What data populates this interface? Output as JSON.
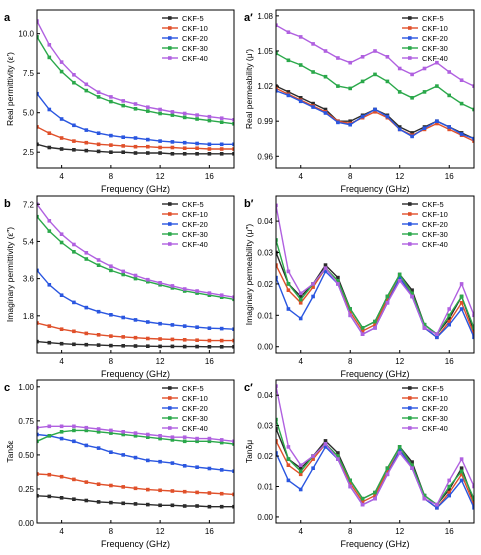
{
  "figure": {
    "legend_labels": [
      "CKF-5",
      "CKF-10",
      "CKF-20",
      "CKF-30",
      "CKF-40"
    ],
    "series_colors": [
      "#2b2b2b",
      "#e0502a",
      "#2a56e0",
      "#2aa84a",
      "#b060e0"
    ]
  },
  "chart_data": [
    {
      "panel": "a",
      "type": "line",
      "marker": "square",
      "xlabel": "Frequency (GHz)",
      "ylabel": "Real permittivity (ε′)",
      "xlim": [
        2,
        18
      ],
      "ylim": [
        1.5,
        11.5
      ],
      "xticks": [
        4,
        8,
        12,
        16
      ],
      "yticks": [
        2.5,
        5.0,
        7.5,
        10.0
      ],
      "xtick_labels": [
        "4",
        "8",
        "12",
        "16"
      ],
      "ytick_labels": [
        "2.5",
        "5.0",
        "7.5",
        "10.0"
      ],
      "legend_position": "top-right",
      "x": [
        2,
        3,
        4,
        5,
        6,
        7,
        8,
        9,
        10,
        11,
        12,
        13,
        14,
        15,
        16,
        17,
        18
      ],
      "series": [
        {
          "name": "CKF-5",
          "values": [
            3.0,
            2.8,
            2.7,
            2.65,
            2.6,
            2.55,
            2.5,
            2.5,
            2.45,
            2.45,
            2.45,
            2.4,
            2.4,
            2.4,
            2.4,
            2.4,
            2.4
          ]
        },
        {
          "name": "CKF-10",
          "values": [
            4.1,
            3.7,
            3.4,
            3.2,
            3.1,
            3.0,
            2.95,
            2.9,
            2.85,
            2.85,
            2.8,
            2.8,
            2.75,
            2.75,
            2.7,
            2.7,
            2.7
          ]
        },
        {
          "name": "CKF-20",
          "values": [
            6.2,
            5.2,
            4.6,
            4.2,
            3.9,
            3.7,
            3.55,
            3.45,
            3.4,
            3.3,
            3.2,
            3.15,
            3.1,
            3.05,
            3.0,
            3.0,
            3.0
          ]
        },
        {
          "name": "CKF-30",
          "values": [
            9.8,
            8.5,
            7.6,
            6.9,
            6.4,
            6.0,
            5.7,
            5.45,
            5.25,
            5.1,
            4.95,
            4.85,
            4.7,
            4.6,
            4.5,
            4.4,
            4.3
          ]
        },
        {
          "name": "CKF-40",
          "values": [
            10.8,
            9.3,
            8.2,
            7.4,
            6.8,
            6.3,
            6.0,
            5.75,
            5.55,
            5.35,
            5.2,
            5.05,
            4.95,
            4.85,
            4.75,
            4.65,
            4.55
          ]
        }
      ]
    },
    {
      "panel": "a′",
      "type": "line",
      "marker": "square",
      "xlabel": "Frequency (GHz)",
      "ylabel": "Real permeability (μ′)",
      "xlim": [
        2,
        18
      ],
      "ylim": [
        0.95,
        1.085
      ],
      "xticks": [
        4,
        8,
        12,
        16
      ],
      "yticks": [
        0.96,
        0.99,
        1.02,
        1.05,
        1.08
      ],
      "xtick_labels": [
        "4",
        "8",
        "12",
        "16"
      ],
      "ytick_labels": [
        "0.96",
        "0.99",
        "1.02",
        "1.05",
        "1.08"
      ],
      "legend_position": "top-right",
      "x": [
        2,
        3,
        4,
        5,
        6,
        7,
        8,
        9,
        10,
        11,
        12,
        13,
        14,
        15,
        16,
        17,
        18
      ],
      "series": [
        {
          "name": "CKF-5",
          "values": [
            1.02,
            1.015,
            1.01,
            1.005,
            1.0,
            0.99,
            0.99,
            0.995,
            1.0,
            0.995,
            0.985,
            0.98,
            0.985,
            0.99,
            0.985,
            0.98,
            0.975
          ]
        },
        {
          "name": "CKF-10",
          "values": [
            1.018,
            1.013,
            1.008,
            1.003,
            0.998,
            0.99,
            0.988,
            0.993,
            0.998,
            0.993,
            0.983,
            0.978,
            0.983,
            0.988,
            0.983,
            0.978,
            0.973
          ]
        },
        {
          "name": "CKF-20",
          "values": [
            1.016,
            1.012,
            1.007,
            1.002,
            0.997,
            0.989,
            0.987,
            0.994,
            1.0,
            0.994,
            0.983,
            0.977,
            0.984,
            0.99,
            0.985,
            0.979,
            0.975
          ]
        },
        {
          "name": "CKF-30",
          "values": [
            1.048,
            1.042,
            1.038,
            1.032,
            1.028,
            1.02,
            1.018,
            1.024,
            1.03,
            1.024,
            1.015,
            1.01,
            1.015,
            1.02,
            1.012,
            1.005,
            1.0
          ]
        },
        {
          "name": "CKF-40",
          "values": [
            1.072,
            1.066,
            1.062,
            1.056,
            1.05,
            1.044,
            1.04,
            1.045,
            1.05,
            1.045,
            1.035,
            1.03,
            1.035,
            1.04,
            1.032,
            1.025,
            1.02
          ]
        }
      ]
    },
    {
      "panel": "b",
      "type": "line",
      "marker": "square",
      "xlabel": "Frequency (GHz)",
      "ylabel": "Imaginary permittivity (ε″)",
      "xlim": [
        2,
        18
      ],
      "ylim": [
        0,
        7.6
      ],
      "xticks": [
        4,
        8,
        12,
        16
      ],
      "yticks": [
        1.8,
        3.6,
        5.4,
        7.2
      ],
      "xtick_labels": [
        "4",
        "8",
        "12",
        "16"
      ],
      "ytick_labels": [
        "1.8",
        "3.6",
        "5.4",
        "7.2"
      ],
      "legend_position": "top-right",
      "x": [
        2,
        3,
        4,
        5,
        6,
        7,
        8,
        9,
        10,
        11,
        12,
        13,
        14,
        15,
        16,
        17,
        18
      ],
      "series": [
        {
          "name": "CKF-5",
          "values": [
            0.55,
            0.5,
            0.45,
            0.42,
            0.4,
            0.38,
            0.36,
            0.35,
            0.34,
            0.33,
            0.32,
            0.32,
            0.31,
            0.31,
            0.3,
            0.3,
            0.3
          ]
        },
        {
          "name": "CKF-10",
          "values": [
            1.45,
            1.3,
            1.15,
            1.05,
            0.95,
            0.88,
            0.82,
            0.78,
            0.74,
            0.7,
            0.68,
            0.66,
            0.64,
            0.62,
            0.6,
            0.6,
            0.6
          ]
        },
        {
          "name": "CKF-20",
          "values": [
            4.0,
            3.3,
            2.8,
            2.45,
            2.2,
            2.0,
            1.85,
            1.72,
            1.6,
            1.5,
            1.42,
            1.36,
            1.3,
            1.25,
            1.2,
            1.18,
            1.15
          ]
        },
        {
          "name": "CKF-30",
          "values": [
            6.6,
            5.9,
            5.35,
            4.9,
            4.55,
            4.25,
            4.0,
            3.8,
            3.6,
            3.45,
            3.3,
            3.15,
            3.0,
            2.9,
            2.8,
            2.7,
            2.6
          ]
        },
        {
          "name": "CKF-40",
          "values": [
            7.2,
            6.4,
            5.75,
            5.25,
            4.85,
            4.5,
            4.2,
            3.95,
            3.75,
            3.55,
            3.4,
            3.25,
            3.1,
            3.0,
            2.9,
            2.8,
            2.7
          ]
        }
      ]
    },
    {
      "panel": "b′",
      "type": "line",
      "marker": "square",
      "xlabel": "Frequency (GHz)",
      "ylabel": "Imaginary permeability (μ″)",
      "xlim": [
        2,
        18
      ],
      "ylim": [
        -0.002,
        0.048
      ],
      "xticks": [
        4,
        8,
        12,
        16
      ],
      "yticks": [
        0.0,
        0.01,
        0.02,
        0.03,
        0.04
      ],
      "xtick_labels": [
        "4",
        "8",
        "12",
        "16"
      ],
      "ytick_labels": [
        "0.00",
        "0.01",
        "0.02",
        "0.03",
        "0.04"
      ],
      "legend_position": "top-right",
      "x": [
        2,
        3,
        4,
        5,
        6,
        7,
        8,
        9,
        10,
        11,
        12,
        13,
        14,
        15,
        16,
        17,
        18
      ],
      "series": [
        {
          "name": "CKF-5",
          "values": [
            0.03,
            0.02,
            0.016,
            0.02,
            0.026,
            0.022,
            0.012,
            0.006,
            0.008,
            0.016,
            0.023,
            0.018,
            0.007,
            0.004,
            0.009,
            0.016,
            0.005
          ]
        },
        {
          "name": "CKF-10",
          "values": [
            0.026,
            0.018,
            0.014,
            0.019,
            0.025,
            0.021,
            0.011,
            0.005,
            0.007,
            0.015,
            0.022,
            0.017,
            0.006,
            0.003,
            0.008,
            0.014,
            0.004
          ]
        },
        {
          "name": "CKF-20",
          "values": [
            0.022,
            0.012,
            0.009,
            0.016,
            0.024,
            0.02,
            0.01,
            0.004,
            0.006,
            0.014,
            0.022,
            0.016,
            0.006,
            0.003,
            0.007,
            0.012,
            0.003
          ]
        },
        {
          "name": "CKF-30",
          "values": [
            0.034,
            0.02,
            0.015,
            0.02,
            0.025,
            0.021,
            0.012,
            0.006,
            0.008,
            0.016,
            0.023,
            0.017,
            0.007,
            0.004,
            0.01,
            0.016,
            0.006
          ]
        },
        {
          "name": "CKF-40",
          "values": [
            0.045,
            0.024,
            0.017,
            0.02,
            0.025,
            0.02,
            0.01,
            0.004,
            0.006,
            0.014,
            0.021,
            0.016,
            0.006,
            0.004,
            0.012,
            0.02,
            0.01
          ]
        }
      ]
    },
    {
      "panel": "c",
      "type": "line",
      "marker": "square",
      "xlabel": "Frequency (GHz)",
      "ylabel": "Tanδε",
      "xlim": [
        2,
        18
      ],
      "ylim": [
        0,
        1.05
      ],
      "xticks": [
        4,
        8,
        12,
        16
      ],
      "yticks": [
        0.0,
        0.25,
        0.5,
        0.75,
        1.0
      ],
      "xtick_labels": [
        "4",
        "8",
        "12",
        "16"
      ],
      "ytick_labels": [
        "0.00",
        "0.25",
        "0.50",
        "0.75",
        "1.00"
      ],
      "legend_position": "top-right",
      "x": [
        2,
        3,
        4,
        5,
        6,
        7,
        8,
        9,
        10,
        11,
        12,
        13,
        14,
        15,
        16,
        17,
        18
      ],
      "series": [
        {
          "name": "CKF-5",
          "values": [
            0.2,
            0.195,
            0.185,
            0.175,
            0.165,
            0.155,
            0.15,
            0.145,
            0.14,
            0.135,
            0.13,
            0.13,
            0.125,
            0.125,
            0.12,
            0.12,
            0.12
          ]
        },
        {
          "name": "CKF-10",
          "values": [
            0.36,
            0.355,
            0.34,
            0.32,
            0.3,
            0.285,
            0.275,
            0.265,
            0.255,
            0.245,
            0.24,
            0.235,
            0.23,
            0.225,
            0.22,
            0.215,
            0.21
          ]
        },
        {
          "name": "CKF-20",
          "values": [
            0.65,
            0.64,
            0.62,
            0.6,
            0.57,
            0.55,
            0.52,
            0.5,
            0.48,
            0.46,
            0.45,
            0.44,
            0.42,
            0.41,
            0.4,
            0.39,
            0.38
          ]
        },
        {
          "name": "CKF-30",
          "values": [
            0.6,
            0.64,
            0.67,
            0.68,
            0.68,
            0.67,
            0.66,
            0.65,
            0.64,
            0.63,
            0.62,
            0.61,
            0.6,
            0.6,
            0.6,
            0.59,
            0.58
          ]
        },
        {
          "name": "CKF-40",
          "values": [
            0.7,
            0.71,
            0.71,
            0.71,
            0.7,
            0.69,
            0.68,
            0.67,
            0.66,
            0.65,
            0.64,
            0.63,
            0.63,
            0.62,
            0.62,
            0.61,
            0.6
          ]
        }
      ]
    },
    {
      "panel": "c′",
      "type": "line",
      "marker": "square",
      "xlabel": "Frequency (GHz)",
      "ylabel": "Tanδμ",
      "xlim": [
        2,
        18
      ],
      "ylim": [
        -0.002,
        0.045
      ],
      "xticks": [
        4,
        8,
        12,
        16
      ],
      "yticks": [
        0.0,
        0.01,
        0.02,
        0.03,
        0.04
      ],
      "xtick_labels": [
        "4",
        "8",
        "12",
        "16"
      ],
      "ytick_labels": [
        "0.00",
        "0.01",
        "0.02",
        "0.03",
        "0.04"
      ],
      "legend_position": "top-right",
      "x": [
        2,
        3,
        4,
        5,
        6,
        7,
        8,
        9,
        10,
        11,
        12,
        13,
        14,
        15,
        16,
        17,
        18
      ],
      "series": [
        {
          "name": "CKF-5",
          "values": [
            0.029,
            0.019,
            0.016,
            0.02,
            0.025,
            0.021,
            0.012,
            0.006,
            0.008,
            0.016,
            0.023,
            0.018,
            0.007,
            0.004,
            0.009,
            0.016,
            0.005
          ]
        },
        {
          "name": "CKF-10",
          "values": [
            0.025,
            0.017,
            0.014,
            0.019,
            0.024,
            0.02,
            0.011,
            0.005,
            0.007,
            0.015,
            0.022,
            0.017,
            0.006,
            0.003,
            0.008,
            0.014,
            0.004
          ]
        },
        {
          "name": "CKF-20",
          "values": [
            0.021,
            0.012,
            0.009,
            0.016,
            0.023,
            0.019,
            0.01,
            0.004,
            0.006,
            0.014,
            0.022,
            0.016,
            0.006,
            0.003,
            0.007,
            0.012,
            0.003
          ]
        },
        {
          "name": "CKF-30",
          "values": [
            0.032,
            0.019,
            0.015,
            0.02,
            0.024,
            0.02,
            0.012,
            0.006,
            0.008,
            0.016,
            0.023,
            0.017,
            0.007,
            0.004,
            0.01,
            0.015,
            0.006
          ]
        },
        {
          "name": "CKF-40",
          "values": [
            0.043,
            0.023,
            0.017,
            0.02,
            0.024,
            0.019,
            0.01,
            0.004,
            0.006,
            0.014,
            0.021,
            0.016,
            0.006,
            0.004,
            0.012,
            0.019,
            0.01
          ]
        }
      ]
    }
  ]
}
